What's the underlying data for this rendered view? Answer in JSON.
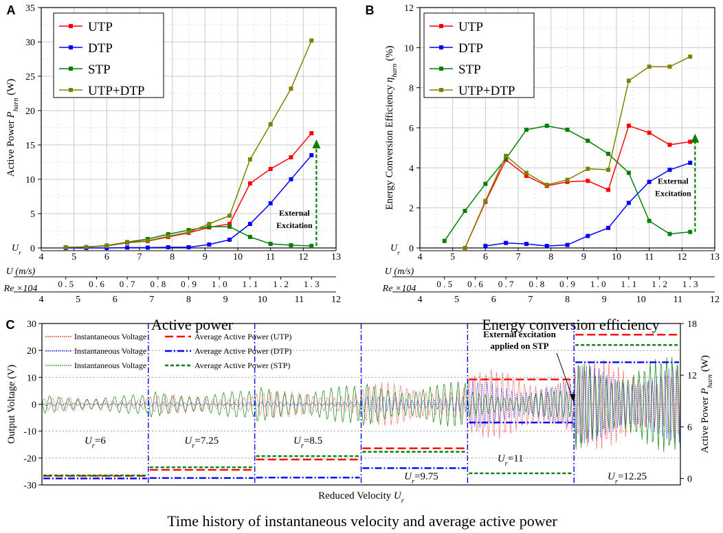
{
  "chart_data": [
    {
      "panel": "A",
      "type": "line",
      "title": "Active power",
      "ylabel": "Active Power",
      "ylabel_symbol": "P",
      "ylabel_sub": "harn",
      "ylabel_unit": "(W)",
      "xlim": [
        4,
        13
      ],
      "ylim": [
        0,
        35
      ],
      "yticks": [
        0,
        5,
        10,
        15,
        20,
        25,
        30,
        35
      ],
      "xticks": [
        "4",
        "5",
        "6",
        "7",
        "8",
        "9",
        "10",
        "11",
        "12",
        "13"
      ],
      "x_axis_rows": [
        {
          "label": "Ur",
          "ticks": [
            "4",
            "5",
            "6",
            "7",
            "8",
            "9",
            "10",
            "11",
            "12",
            "13"
          ]
        },
        {
          "label": "U (m/s)",
          "ticks": [
            "0.5",
            "0.6",
            "0.7",
            "0.8",
            "0.9",
            "1.0",
            "1.1",
            "1.2",
            "1.3"
          ]
        },
        {
          "label": "Re ×10⁴",
          "ticks": [
            "4",
            "5",
            "6",
            "7",
            "8",
            "9",
            "10",
            "11",
            "12"
          ]
        }
      ],
      "annotation": {
        "text_line1": "External",
        "text_line2": "Excitation",
        "arrow_x": 12.4,
        "arrow_from": 0.3,
        "arrow_to": 15.5
      },
      "x": [
        4.75,
        5.375,
        6,
        6.625,
        7.25,
        7.875,
        8.5,
        9.125,
        9.75,
        10.375,
        11,
        11.625,
        12.25
      ],
      "series": [
        {
          "name": "UTP",
          "color": "#ff0000",
          "values": [
            0.1,
            0.15,
            0.3,
            0.75,
            1.0,
            1.6,
            2.2,
            3.0,
            3.5,
            9.4,
            11.5,
            13.2,
            16.7
          ]
        },
        {
          "name": "DTP",
          "color": "#0000ff",
          "values": [
            0.0,
            0.0,
            0.0,
            0.05,
            0.05,
            0.1,
            0.1,
            0.5,
            1.2,
            3.5,
            6.5,
            10.0,
            13.5
          ]
        },
        {
          "name": "STP",
          "color": "#008000",
          "values": [
            0.1,
            0.15,
            0.35,
            0.85,
            1.3,
            2.0,
            2.6,
            3.1,
            3.1,
            1.6,
            0.6,
            0.4,
            0.3
          ]
        },
        {
          "name": "UTP+DTP",
          "color": "#808000",
          "values": [
            0.1,
            0.15,
            0.3,
            0.8,
            1.05,
            1.7,
            2.3,
            3.5,
            4.7,
            12.9,
            18.0,
            23.2,
            30.2
          ]
        }
      ]
    },
    {
      "panel": "B",
      "type": "line",
      "title": "Energy conversion efficiency",
      "ylabel": "Energy Conversion Efficiency",
      "ylabel_symbol": "η",
      "ylabel_sub": "harn",
      "ylabel_unit": "(%)",
      "xlim": [
        4,
        13
      ],
      "ylim": [
        0,
        12
      ],
      "yticks": [
        0,
        2,
        4,
        6,
        8,
        10,
        12
      ],
      "xticks": [
        "4",
        "5",
        "6",
        "7",
        "8",
        "9",
        "10",
        "11",
        "12",
        "13"
      ],
      "x_axis_rows": [
        {
          "label": "Ur",
          "ticks": [
            "4",
            "5",
            "6",
            "7",
            "8",
            "9",
            "10",
            "11",
            "12",
            "13"
          ]
        },
        {
          "label": "U (m/s)",
          "ticks": [
            "0.5",
            "0.6",
            "0.7",
            "0.8",
            "0.9",
            "1.0",
            "1.1",
            "1.2",
            "1.3"
          ]
        },
        {
          "label": "Re ×10⁴",
          "ticks": [
            "4",
            "5",
            "6",
            "7",
            "8",
            "9",
            "10",
            "11",
            "12"
          ]
        }
      ],
      "annotation": {
        "text_line1": "External",
        "text_line2": "Excitation",
        "arrow_x": 12.4,
        "arrow_from": 0.8,
        "arrow_to": 5.6
      },
      "x": [
        4.75,
        5.375,
        6,
        6.625,
        7.25,
        7.875,
        8.5,
        9.125,
        9.75,
        10.375,
        11,
        11.625,
        12.25
      ],
      "series": [
        {
          "name": "UTP",
          "color": "#ff0000",
          "x": [
            5.375,
            6,
            6.625,
            7.25,
            7.875,
            8.5,
            9.125,
            9.75,
            10.375,
            11,
            11.625,
            12.25
          ],
          "values": [
            0.0,
            2.3,
            4.4,
            3.6,
            3.1,
            3.3,
            3.35,
            2.9,
            6.1,
            5.75,
            5.15,
            5.3
          ]
        },
        {
          "name": "DTP",
          "color": "#0000ff",
          "x": [
            6,
            6.625,
            7.25,
            7.875,
            8.5,
            9.125,
            9.75,
            10.375,
            11,
            11.625,
            12.25
          ],
          "values": [
            0.1,
            0.25,
            0.2,
            0.1,
            0.15,
            0.6,
            1.0,
            2.25,
            3.3,
            3.9,
            4.25
          ]
        },
        {
          "name": "STP",
          "color": "#008000",
          "x": [
            4.75,
            5.375,
            6,
            6.625,
            7.25,
            7.875,
            8.5,
            9.125,
            9.75,
            10.375,
            11,
            11.625,
            12.25
          ],
          "values": [
            0.35,
            1.85,
            3.2,
            4.45,
            5.9,
            6.1,
            5.9,
            5.35,
            4.7,
            3.75,
            1.35,
            0.7,
            0.8
          ]
        },
        {
          "name": "UTP+DTP",
          "color": "#808000",
          "x": [
            5.375,
            6,
            6.625,
            7.25,
            7.875,
            8.5,
            9.125,
            9.75,
            10.375,
            11,
            11.625,
            12.25
          ],
          "values": [
            0.0,
            2.35,
            4.6,
            3.75,
            3.15,
            3.4,
            3.95,
            3.9,
            8.35,
            9.05,
            9.05,
            9.55
          ]
        }
      ]
    },
    {
      "panel": "C",
      "type": "line",
      "title": "Time history of instantaneous velocity and average active power",
      "xlabel": "Reduced Velocity",
      "xlabel_symbol": "U",
      "xlabel_sub": "r",
      "ylabel_left": "Output Voltage  (V)",
      "ylabel_right": "Active Power",
      "ylabel_right_symbol": "P",
      "ylabel_right_sub": "harn",
      "ylabel_right_unit": "(W)",
      "ylim_left": [
        -30,
        30
      ],
      "yticks_left": [
        -30,
        -20,
        -10,
        0,
        10,
        20,
        30
      ],
      "ylim_right": [
        -0.75,
        18
      ],
      "yticks_right": [
        0,
        6,
        12,
        18
      ],
      "annotation": {
        "text_line1": "External excitation",
        "text_line2": "applied on STP"
      },
      "segments": [
        {
          "label": "=6",
          "ur": 6,
          "voltage_amplitude": {
            "UTP": 2.5,
            "DTP": 0.6,
            "STP": 3.5
          },
          "power": {
            "UTP": 0.3,
            "DTP": 0.0,
            "STP": 0.35
          }
        },
        {
          "label": "=7.25",
          "ur": 7.25,
          "voltage_amplitude": {
            "UTP": 3.5,
            "DTP": 0.8,
            "STP": 5.0
          },
          "power": {
            "UTP": 1.0,
            "DTP": 0.05,
            "STP": 1.3
          }
        },
        {
          "label": "=8.5",
          "ur": 8.5,
          "voltage_amplitude": {
            "UTP": 5.0,
            "DTP": 1.0,
            "STP": 7.0
          },
          "power": {
            "UTP": 2.2,
            "DTP": 0.1,
            "STP": 2.6
          }
        },
        {
          "label": "=9.75",
          "ur": 9.75,
          "voltage_amplitude": {
            "UTP": 8.0,
            "DTP": 3.0,
            "STP": 8.5
          },
          "power": {
            "UTP": 3.5,
            "DTP": 1.2,
            "STP": 3.1
          }
        },
        {
          "label": "=11",
          "ur": 11,
          "voltage_amplitude": {
            "UTP": 13.0,
            "DTP": 9.0,
            "STP": 5.0
          },
          "power": {
            "UTP": 11.5,
            "DTP": 6.5,
            "STP": 0.6
          }
        },
        {
          "label": "=12.25",
          "ur": 12.25,
          "voltage_amplitude": {
            "UTP": 17.0,
            "DTP": 15.0,
            "STP": 18.0
          },
          "power": {
            "UTP": 16.7,
            "DTP": 13.5,
            "STP": 15.5
          }
        }
      ],
      "legend": [
        {
          "left": "Instantaneous Voltage",
          "right": "Average Active Power (UTP)",
          "color": "#ff0000"
        },
        {
          "left": "Instantaneous Voltage",
          "right": "Average Active Power (DTP)",
          "color": "#0000ff"
        },
        {
          "left": "Instantaneous Voltage",
          "right": "Average Active Power (STP)",
          "color": "#008000"
        }
      ]
    }
  ]
}
